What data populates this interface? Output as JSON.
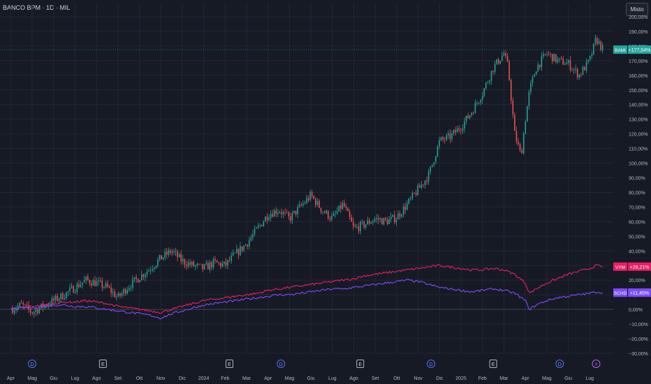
{
  "header": {
    "title": "BANCO BPM · 1D · MIL",
    "scale_button": "Misto"
  },
  "colors": {
    "background": "#161a25",
    "grid": "#232733",
    "text": "#b2b5be",
    "up": "#26a69a",
    "down": "#ef5350",
    "vym": "#e91e63",
    "schd": "#7c4dff"
  },
  "chart_data": {
    "type": "line",
    "main_series": "BAMI",
    "ylim": [
      -30,
      200
    ],
    "y_ticks": [
      "200,00%",
      "190,00%",
      "180,00%",
      "170,00%",
      "160,00%",
      "150,00%",
      "140,00%",
      "130,00%",
      "120,00%",
      "110,00%",
      "100,00%",
      "90,00%",
      "80,00%",
      "70,00%",
      "60,00%",
      "50,00%",
      "40,00%",
      "30,00%",
      "20,00%",
      "10,00%",
      "0,00%",
      "−10,00%",
      "−20,00%",
      "−30,00%"
    ],
    "x_ticks": [
      {
        "label": "Apr",
        "x": 0
      },
      {
        "label": "Mag",
        "x": 1
      },
      {
        "label": "Giu",
        "x": 2
      },
      {
        "label": "Lug",
        "x": 3
      },
      {
        "label": "Ago",
        "x": 4
      },
      {
        "label": "Set",
        "x": 5
      },
      {
        "label": "Ott",
        "x": 6
      },
      {
        "label": "Nov",
        "x": 7
      },
      {
        "label": "Dic",
        "x": 8
      },
      {
        "label": "2024",
        "x": 9
      },
      {
        "label": "Feb",
        "x": 10
      },
      {
        "label": "Mar",
        "x": 11
      },
      {
        "label": "Apr",
        "x": 12
      },
      {
        "label": "Mag",
        "x": 13
      },
      {
        "label": "Giu",
        "x": 14
      },
      {
        "label": "Lug",
        "x": 15
      },
      {
        "label": "Ago",
        "x": 16
      },
      {
        "label": "Set",
        "x": 17
      },
      {
        "label": "Ott",
        "x": 18
      },
      {
        "label": "Nov",
        "x": 19
      },
      {
        "label": "Dic",
        "x": 20
      },
      {
        "label": "2025",
        "x": 21
      },
      {
        "label": "Feb",
        "x": 22
      },
      {
        "label": "Mar",
        "x": 23
      },
      {
        "label": "Apr",
        "x": 24
      },
      {
        "label": "Mag",
        "x": 25
      },
      {
        "label": "Giu",
        "x": 26
      },
      {
        "label": "Lug",
        "x": 27
      }
    ],
    "series": [
      {
        "name": "BAMI",
        "type": "candlestick",
        "last_label": "+177,54%",
        "last_value": 177.54,
        "x": [
          0,
          0.5,
          1,
          1.5,
          2,
          2.5,
          3,
          3.5,
          4,
          4.5,
          5,
          5.5,
          6,
          6.5,
          7,
          7.5,
          8,
          8.5,
          9,
          9.5,
          10,
          10.5,
          11,
          11.5,
          12,
          12.5,
          13,
          13.5,
          14,
          14.5,
          15,
          15.5,
          16,
          16.5,
          17,
          17.5,
          18,
          18.5,
          19,
          19.5,
          20,
          20.5,
          21,
          21.5,
          22,
          22.5,
          23,
          23.2,
          23.5,
          23.8,
          24,
          24.2,
          24.5,
          25,
          25.5,
          26,
          26.5,
          27,
          27.3,
          27.6
        ],
        "values": [
          0,
          3,
          -2,
          2,
          6,
          10,
          15,
          20,
          18,
          15,
          8,
          16,
          22,
          28,
          35,
          40,
          33,
          30,
          28,
          32,
          30,
          38,
          45,
          55,
          65,
          68,
          62,
          70,
          78,
          68,
          62,
          72,
          55,
          58,
          62,
          60,
          63,
          72,
          82,
          92,
          115,
          118,
          125,
          135,
          148,
          165,
          175,
          165,
          120,
          105,
          130,
          150,
          165,
          175,
          170,
          168,
          160,
          170,
          185,
          178
        ]
      },
      {
        "name": "VYM",
        "type": "line",
        "last_label": "+29,21%",
        "last_value": 29.21,
        "x": [
          0,
          0.5,
          1,
          1.5,
          2,
          2.5,
          3,
          3.5,
          4,
          4.5,
          5,
          5.5,
          6,
          6.5,
          7,
          7.5,
          8,
          8.5,
          9,
          9.5,
          10,
          10.5,
          11,
          11.5,
          12,
          12.5,
          13,
          13.5,
          14,
          14.5,
          15,
          15.5,
          16,
          16.5,
          17,
          17.5,
          18,
          18.5,
          19,
          19.5,
          20,
          20.5,
          21,
          21.5,
          22,
          22.5,
          23,
          23.5,
          24,
          24.2,
          24.5,
          25,
          25.5,
          26,
          26.5,
          27,
          27.3,
          27.6
        ],
        "values": [
          0,
          1,
          2,
          3,
          4,
          5,
          5,
          6,
          5,
          4,
          2,
          1,
          0,
          -1,
          -2,
          0,
          2,
          4,
          6,
          7,
          8,
          9,
          10,
          11,
          13,
          14,
          15,
          16,
          17,
          18,
          19,
          20,
          21,
          23,
          24,
          25,
          26,
          27,
          28,
          29,
          30,
          29,
          28,
          27,
          27,
          28,
          27,
          24,
          18,
          11,
          14,
          18,
          21,
          24,
          26,
          28,
          30,
          29.21
        ]
      },
      {
        "name": "SCHD",
        "type": "line",
        "last_label": "+11,45%",
        "last_value": 11.45,
        "x": [
          0,
          0.5,
          1,
          1.5,
          2,
          2.5,
          3,
          3.5,
          4,
          4.5,
          5,
          5.5,
          6,
          6.5,
          7,
          7.5,
          8,
          8.5,
          9,
          9.5,
          10,
          10.5,
          11,
          11.5,
          12,
          12.5,
          13,
          13.5,
          14,
          14.5,
          15,
          15.5,
          16,
          16.5,
          17,
          17.5,
          18,
          18.5,
          19,
          19.5,
          20,
          20.5,
          21,
          21.5,
          22,
          22.5,
          23,
          23.5,
          24,
          24.2,
          24.5,
          25,
          25.5,
          26,
          26.5,
          27,
          27.3,
          27.6
        ],
        "values": [
          0,
          1,
          1,
          2,
          3,
          3,
          2,
          2,
          1,
          0,
          -1,
          -2,
          -3,
          -4,
          -6,
          -3,
          -1,
          1,
          3,
          4,
          5,
          6,
          7,
          8,
          9,
          10,
          10,
          11,
          12,
          13,
          14,
          14,
          15,
          16,
          17,
          18,
          19,
          20,
          19,
          17,
          15,
          14,
          13,
          12,
          13,
          14,
          13,
          11,
          6,
          0,
          3,
          6,
          8,
          9,
          10,
          11,
          12,
          11.45
        ]
      }
    ],
    "annotations": [
      "D",
      "E",
      "E",
      "D",
      "E",
      "D",
      "E",
      "D",
      "⚡"
    ],
    "annotation_x": [
      1,
      4.3,
      10.2,
      12.6,
      16.3,
      19.6,
      22.5,
      25.6,
      27.3
    ]
  }
}
